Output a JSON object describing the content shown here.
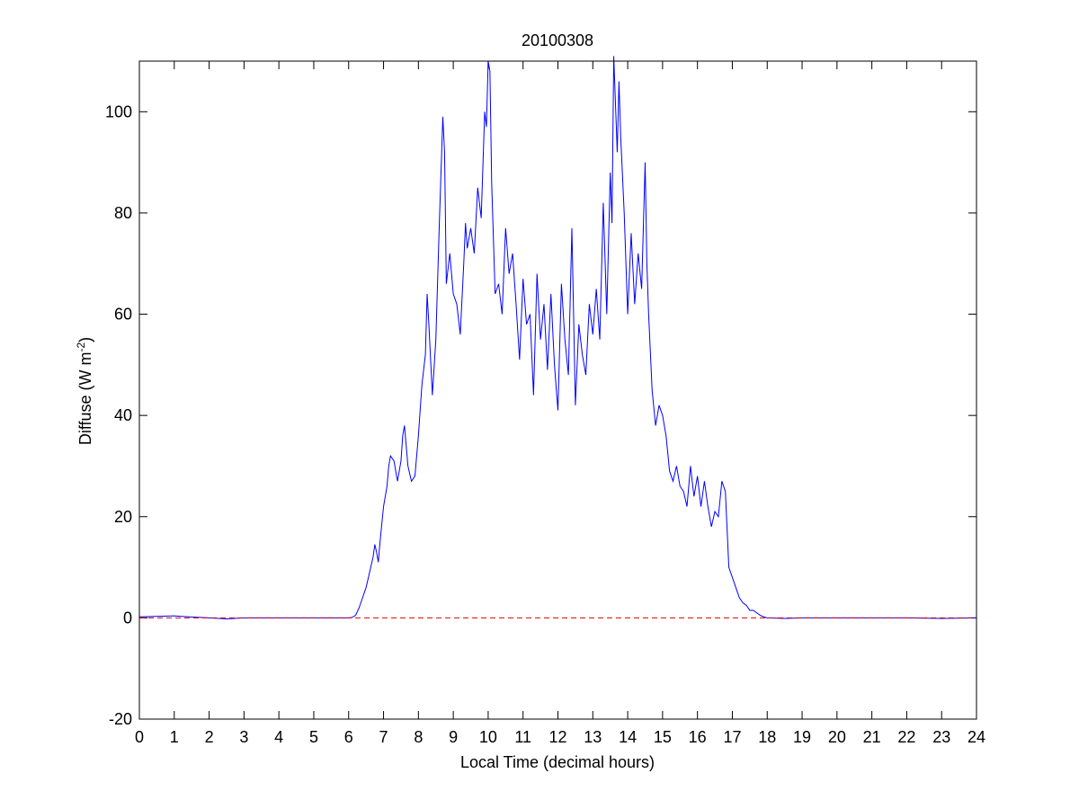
{
  "chart_data": {
    "type": "line",
    "title": "20100308",
    "xlabel": "Local Time (decimal hours)",
    "ylabel": {
      "text": "Diffuse (W m",
      "superscript": "-2",
      "suffix": ")"
    },
    "xlim": [
      0,
      24
    ],
    "xticks": [
      0,
      1,
      2,
      3,
      4,
      5,
      6,
      7,
      8,
      9,
      10,
      11,
      12,
      13,
      14,
      15,
      16,
      17,
      18,
      19,
      20,
      21,
      22,
      23,
      24
    ],
    "ylim": [
      -20,
      110
    ],
    "yticks": [
      -20,
      0,
      20,
      40,
      60,
      80,
      100
    ],
    "grid": false,
    "reference_line": {
      "y": 0,
      "color": "#dd0000",
      "style": "dashed"
    },
    "x": [
      0,
      1,
      1.2,
      2,
      2.5,
      3,
      4,
      5,
      6,
      6.1,
      6.2,
      6.3,
      6.4,
      6.5,
      6.6,
      6.7,
      6.75,
      6.8,
      6.85,
      6.9,
      7.0,
      7.1,
      7.15,
      7.2,
      7.3,
      7.4,
      7.5,
      7.55,
      7.6,
      7.7,
      7.8,
      7.9,
      8.0,
      8.1,
      8.2,
      8.25,
      8.3,
      8.4,
      8.5,
      8.6,
      8.7,
      8.75,
      8.8,
      8.9,
      9.0,
      9.1,
      9.2,
      9.3,
      9.35,
      9.4,
      9.5,
      9.6,
      9.7,
      9.8,
      9.9,
      9.95,
      10.0,
      10.05,
      10.1,
      10.2,
      10.3,
      10.4,
      10.5,
      10.6,
      10.7,
      10.8,
      10.9,
      11.0,
      11.1,
      11.2,
      11.3,
      11.4,
      11.5,
      11.6,
      11.7,
      11.8,
      11.9,
      12.0,
      12.1,
      12.2,
      12.3,
      12.4,
      12.5,
      12.6,
      12.7,
      12.8,
      12.9,
      13.0,
      13.1,
      13.2,
      13.3,
      13.4,
      13.5,
      13.55,
      13.6,
      13.7,
      13.75,
      13.8,
      13.9,
      14.0,
      14.1,
      14.2,
      14.3,
      14.4,
      14.5,
      14.55,
      14.6,
      14.7,
      14.8,
      14.9,
      15.0,
      15.1,
      15.2,
      15.3,
      15.4,
      15.5,
      15.6,
      15.7,
      15.8,
      15.9,
      16.0,
      16.1,
      16.2,
      16.3,
      16.4,
      16.5,
      16.6,
      16.7,
      16.8,
      16.9,
      17.0,
      17.1,
      17.2,
      17.3,
      17.4,
      17.5,
      17.6,
      17.7,
      17.8,
      17.9,
      18.0,
      18.5,
      19,
      20,
      21,
      22,
      23,
      24
    ],
    "series": [
      {
        "color": "#0000ff",
        "values": [
          0.2,
          0.4,
          0.3,
          0,
          -0.2,
          0,
          0,
          0,
          0,
          0.1,
          0.5,
          2,
          4,
          6,
          9,
          12,
          14.5,
          13,
          11,
          15,
          22,
          26,
          30,
          32,
          31,
          27,
          31,
          36,
          38,
          30,
          27,
          28,
          36,
          46,
          52,
          64,
          58,
          44,
          55,
          78,
          99,
          92,
          66,
          72,
          64,
          62,
          56,
          70,
          78,
          73,
          77,
          72,
          85,
          79,
          100,
          97,
          110,
          108,
          86,
          64,
          66,
          60,
          77,
          68,
          72,
          62,
          51,
          67,
          58,
          60,
          44,
          68,
          55,
          62,
          49,
          64,
          50,
          41,
          66,
          55,
          48,
          77,
          42,
          58,
          52,
          48,
          62,
          56,
          65,
          55,
          82,
          60,
          88,
          78,
          111,
          92,
          106,
          95,
          80,
          60,
          76,
          62,
          72,
          65,
          90,
          70,
          60,
          45,
          38,
          42,
          40,
          36,
          29,
          27,
          30,
          26,
          25,
          22,
          30,
          24,
          28,
          22,
          27,
          22,
          18,
          21,
          20,
          27,
          25,
          10,
          8,
          6,
          4,
          3,
          2.5,
          1.5,
          1.5,
          1,
          0.5,
          0.2,
          0,
          -0.1,
          0,
          0,
          0,
          0,
          -0.1,
          0
        ]
      }
    ]
  }
}
